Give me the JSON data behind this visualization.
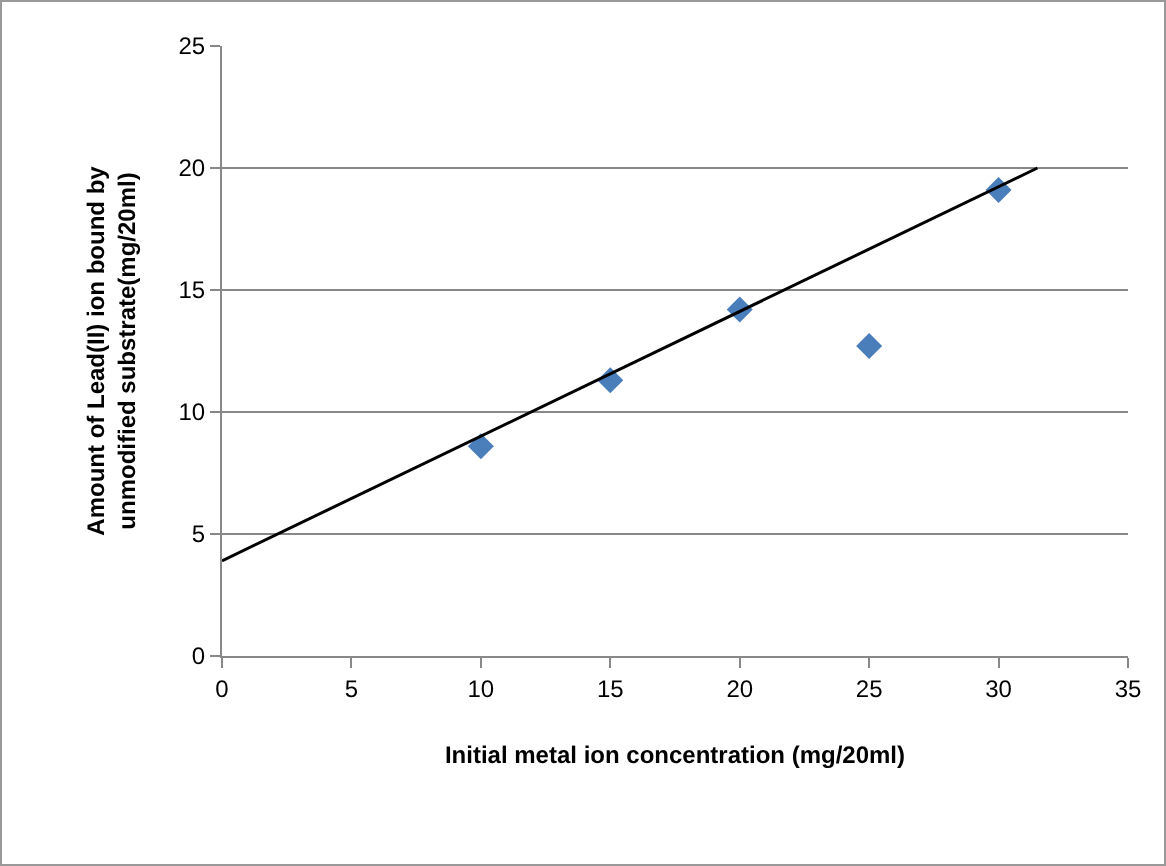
{
  "chart_data": {
    "type": "scatter",
    "xlabel": "Initial metal ion concentration (mg/20ml)",
    "ylabel": "Amount of Lead(II) ion bound by\nunmodified substrate(mg/20ml)",
    "x": [
      10,
      15,
      20,
      25,
      30
    ],
    "series": [
      {
        "color": "#4a7ebb",
        "marker": "diamond",
        "values": [
          8.6,
          11.3,
          14.2,
          12.7,
          19.1
        ]
      },
      {
        "type": "line",
        "color": "#000000",
        "marker": "none",
        "x": [
          0,
          31.5
        ],
        "values": [
          3.9,
          20
        ]
      }
    ],
    "xlim": [
      0,
      35
    ],
    "xticks": [
      0,
      5,
      10,
      15,
      20,
      25,
      30,
      35
    ],
    "ylim": [
      0,
      25
    ],
    "yticks": [
      0,
      5,
      10,
      15,
      20,
      25
    ],
    "grid": "y",
    "legend": false
  }
}
